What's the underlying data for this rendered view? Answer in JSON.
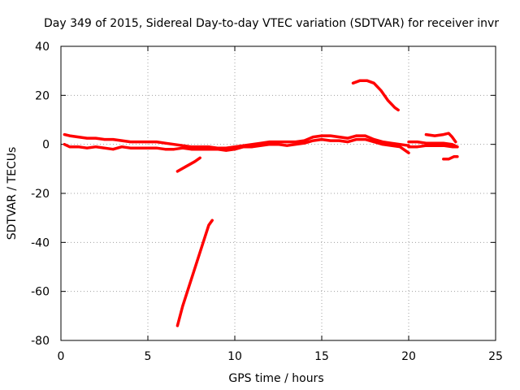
{
  "chart_data": {
    "type": "scatter",
    "title": "Day 349 of 2015, Sidereal Day-to-day VTEC variation (SDTVAR) for receiver invr",
    "xlabel": "GPS time / hours",
    "ylabel": "SDTVAR / TECUs",
    "xlim": [
      0,
      25
    ],
    "ylim": [
      -80,
      40
    ],
    "xticks": [
      0,
      5,
      10,
      15,
      20,
      25
    ],
    "yticks": [
      -80,
      -60,
      -40,
      -20,
      0,
      20,
      40
    ],
    "grid": true,
    "series_color": "#ff0000",
    "series": [
      {
        "name": "main-band-upper",
        "x": [
          0.2,
          0.5,
          1.0,
          1.5,
          2.0,
          2.5,
          3.0,
          3.5,
          4.0,
          4.5,
          5.0,
          5.5,
          6.0,
          6.5,
          7.0,
          7.5,
          8.0,
          8.5,
          9.0,
          9.5,
          10.0,
          10.5,
          11.0,
          11.5,
          12.0,
          12.5,
          13.0,
          13.5,
          14.0,
          14.5,
          15.0,
          15.5,
          16.0,
          16.5,
          17.0,
          17.5,
          18.0,
          18.5,
          19.0,
          19.5,
          20.0
        ],
        "y": [
          4,
          3.5,
          3,
          2.5,
          2.5,
          2,
          2,
          1.5,
          1,
          1,
          1,
          1,
          0.5,
          0,
          -0.5,
          -1,
          -1,
          -1,
          -1.5,
          -1.5,
          -1,
          -0.5,
          0,
          0.5,
          1,
          1,
          1,
          1,
          1.5,
          3,
          3.5,
          3.5,
          3,
          2.5,
          3.5,
          3.5,
          2,
          1,
          0.5,
          0,
          -0.5
        ]
      },
      {
        "name": "main-band-lower",
        "x": [
          0.2,
          0.5,
          1.0,
          1.5,
          2.0,
          2.5,
          3.0,
          3.5,
          4.0,
          4.5,
          5.0,
          5.5,
          6.0,
          6.5,
          7.0,
          7.5,
          8.0,
          8.5,
          9.0,
          9.5,
          10.0,
          10.5,
          11.0,
          11.5,
          12.0,
          12.5,
          13.0,
          13.5,
          14.0,
          14.5,
          15.0,
          15.5,
          16.0,
          16.5,
          17.0,
          17.5,
          18.0,
          18.5,
          19.0,
          19.5,
          20.0
        ],
        "y": [
          0,
          -1,
          -1,
          -1.5,
          -1,
          -1.5,
          -2,
          -1,
          -1.5,
          -1.5,
          -1.5,
          -1.5,
          -2,
          -2,
          -1.5,
          -2,
          -2,
          -2,
          -2,
          -2.5,
          -2,
          -1,
          -1,
          -0.5,
          0,
          0,
          -0.5,
          0,
          0.5,
          1.5,
          2,
          1.5,
          1.5,
          1,
          2,
          2,
          1,
          0,
          -0.5,
          -1,
          -3.5
        ]
      },
      {
        "name": "late-segment-upper",
        "x": [
          20.0,
          20.5,
          21.0,
          21.5,
          22.0,
          22.5,
          22.8
        ],
        "y": [
          1,
          1,
          0.5,
          0.5,
          0.5,
          0,
          -1
        ]
      },
      {
        "name": "late-segment-lower",
        "x": [
          20.0,
          20.5,
          21.0,
          21.5,
          22.0,
          22.5,
          22.8
        ],
        "y": [
          -1,
          -1,
          -0.5,
          -0.5,
          -0.5,
          -1,
          -1
        ]
      },
      {
        "name": "late-hump",
        "x": [
          21.0,
          21.5,
          22.0,
          22.3,
          22.5,
          22.7
        ],
        "y": [
          4,
          3.5,
          4,
          4.5,
          3,
          1
        ]
      },
      {
        "name": "late-low",
        "x": [
          22.0,
          22.3,
          22.6,
          22.8
        ],
        "y": [
          -6,
          -6,
          -5,
          -5
        ]
      },
      {
        "name": "high-arc",
        "x": [
          16.8,
          17.2,
          17.6,
          18.0,
          18.4,
          18.8,
          19.2,
          19.4
        ],
        "y": [
          25,
          26,
          26,
          25,
          22,
          18,
          15,
          14
        ]
      },
      {
        "name": "short-descent",
        "x": [
          6.7,
          7.2,
          7.7,
          8.0
        ],
        "y": [
          -11,
          -9,
          -7,
          -5.5
        ]
      },
      {
        "name": "steep-drop",
        "x": [
          6.7,
          7.0,
          7.5,
          8.0,
          8.5,
          8.7
        ],
        "y": [
          -74,
          -66,
          -55,
          -44,
          -33,
          -31
        ]
      }
    ]
  }
}
